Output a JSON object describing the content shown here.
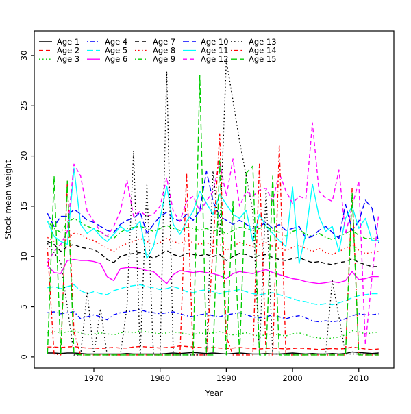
{
  "chart_data": {
    "type": "line",
    "title": "",
    "xlabel": "Year",
    "ylabel": "Stock mean weight",
    "grid": false,
    "legend_position": "top-left-inside",
    "legend_columns": 5,
    "xlim": [
      1961.0,
      2015.3
    ],
    "ylim": [
      -1.1,
      32.45
    ],
    "xticks": [
      1970,
      1980,
      1990,
      2000,
      2010
    ],
    "yticks": [
      0,
      5,
      10,
      15,
      20,
      25,
      30
    ],
    "x": [
      1963,
      1964,
      1965,
      1966,
      1967,
      1968,
      1969,
      1970,
      1971,
      1972,
      1973,
      1974,
      1975,
      1976,
      1977,
      1978,
      1979,
      1980,
      1981,
      1982,
      1983,
      1984,
      1985,
      1986,
      1987,
      1988,
      1989,
      1990,
      1991,
      1992,
      1993,
      1994,
      1995,
      1996,
      1997,
      1998,
      1999,
      2000,
      2001,
      2002,
      2003,
      2004,
      2005,
      2006,
      2007,
      2008,
      2009,
      2010,
      2011,
      2012,
      2013
    ],
    "series": [
      {
        "name": "Age 1",
        "color": "#000000",
        "linetype": "solid",
        "values": [
          0.4,
          0.4,
          0.35,
          0.4,
          0.4,
          0.35,
          0.3,
          0.3,
          0.3,
          0.3,
          0.3,
          0.3,
          0.35,
          0.3,
          0.3,
          0.3,
          0.3,
          0.3,
          0.35,
          0.4,
          0.35,
          0.4,
          0.45,
          0.4,
          0.35,
          0.4,
          0.35,
          0.3,
          0.35,
          0.4,
          0.35,
          0.3,
          0.3,
          0.35,
          0.3,
          0.3,
          0.35,
          0.4,
          0.35,
          0.3,
          0.35,
          0.3,
          0.3,
          0.35,
          0.3,
          0.35,
          0.5,
          0.45,
          0.4,
          0.35,
          0.4
        ]
      },
      {
        "name": "Age 2",
        "color": "#FF0000",
        "linetype": "dashed",
        "values": [
          1.0,
          1.0,
          0.95,
          1.0,
          1.05,
          0.95,
          0.9,
          0.9,
          0.85,
          0.9,
          0.95,
          0.9,
          0.9,
          1.0,
          1.05,
          1.0,
          0.95,
          0.9,
          0.95,
          1.0,
          1.1,
          1.05,
          1.0,
          0.95,
          0.9,
          0.95,
          0.9,
          0.85,
          0.9,
          0.95,
          0.9,
          0.85,
          0.8,
          0.85,
          0.9,
          0.85,
          0.8,
          0.85,
          0.9,
          0.85,
          0.8,
          0.75,
          0.8,
          0.85,
          0.8,
          0.85,
          1.0,
          0.9,
          0.8,
          0.75,
          0.8
        ]
      },
      {
        "name": "Age 3",
        "color": "#00CD00",
        "linetype": "dotted",
        "values": [
          2.4,
          2.5,
          2.4,
          2.5,
          2.6,
          2.4,
          2.2,
          2.3,
          2.4,
          2.3,
          2.2,
          2.4,
          2.5,
          2.4,
          2.6,
          2.5,
          2.4,
          2.3,
          2.4,
          2.5,
          2.4,
          2.3,
          2.2,
          2.4,
          2.3,
          2.4,
          2.5,
          2.3,
          2.2,
          2.3,
          2.4,
          2.2,
          2.1,
          2.2,
          2.3,
          2.2,
          2.1,
          2.3,
          2.4,
          2.2,
          2.0,
          1.9,
          1.8,
          1.9,
          2.0,
          2.2,
          2.6,
          2.5,
          2.3,
          2.4,
          2.5
        ]
      },
      {
        "name": "Age 4",
        "color": "#0000FF",
        "linetype": "dotdash",
        "values": [
          4.4,
          4.5,
          4.3,
          4.4,
          4.5,
          3.8,
          4.0,
          4.2,
          4.0,
          3.7,
          4.2,
          4.4,
          4.5,
          4.6,
          4.7,
          4.5,
          4.4,
          4.3,
          4.4,
          4.5,
          4.3,
          4.1,
          4.0,
          4.2,
          4.3,
          4.1,
          4.0,
          4.2,
          4.3,
          4.4,
          4.2,
          4.0,
          3.9,
          4.0,
          4.2,
          4.0,
          3.8,
          4.0,
          4.1,
          3.9,
          3.6,
          3.5,
          3.6,
          3.5,
          3.6,
          3.8,
          4.1,
          4.3,
          4.2,
          4.2,
          4.3
        ]
      },
      {
        "name": "Age 5",
        "color": "#00FFFF",
        "linetype": "longdash",
        "values": [
          6.9,
          7.0,
          6.8,
          7.0,
          7.2,
          6.6,
          6.3,
          6.5,
          6.3,
          6.2,
          6.6,
          6.8,
          7.0,
          7.1,
          7.2,
          7.0,
          6.9,
          6.7,
          6.8,
          7.0,
          6.8,
          6.5,
          6.4,
          6.6,
          6.7,
          6.5,
          6.3,
          6.5,
          6.6,
          6.7,
          6.5,
          6.3,
          6.2,
          6.3,
          6.4,
          6.2,
          6.0,
          5.8,
          5.6,
          5.5,
          5.3,
          5.2,
          5.3,
          5.2,
          5.4,
          5.6,
          5.9,
          6.1,
          6.2,
          6.3,
          6.3
        ]
      },
      {
        "name": "Age 6",
        "color": "#FF00FF",
        "linetype": "solid",
        "values": [
          9.1,
          8.4,
          8.3,
          9.6,
          9.7,
          9.6,
          9.6,
          9.5,
          9.3,
          8.0,
          7.6,
          8.8,
          8.9,
          8.9,
          8.8,
          8.6,
          8.5,
          7.9,
          7.3,
          8.2,
          8.6,
          8.5,
          8.4,
          8.5,
          8.4,
          8.3,
          8.1,
          7.8,
          8.3,
          8.5,
          8.4,
          8.3,
          8.5,
          8.7,
          8.4,
          8.2,
          8.0,
          7.8,
          7.7,
          7.5,
          7.4,
          7.3,
          7.4,
          7.5,
          7.4,
          7.6,
          8.5,
          7.7,
          7.8,
          8.0,
          8.0
        ]
      },
      {
        "name": "Age 7",
        "color": "#000000",
        "linetype": "dashed",
        "values": [
          11.5,
          11.2,
          10.5,
          11.0,
          11.2,
          10.9,
          10.8,
          10.7,
          10.3,
          9.7,
          9.4,
          10.0,
          10.2,
          10.3,
          10.4,
          10.2,
          9.8,
          10.2,
          10.6,
          10.2,
          10.0,
          10.3,
          10.2,
          10.1,
          10.2,
          10.0,
          10.2,
          9.6,
          10.0,
          10.3,
          10.2,
          9.9,
          10.1,
          10.2,
          9.9,
          9.7,
          9.6,
          9.8,
          9.9,
          9.6,
          9.4,
          9.5,
          9.3,
          9.2,
          9.4,
          9.5,
          9.8,
          9.4,
          9.2,
          9.0,
          9.0
        ]
      },
      {
        "name": "Age 8",
        "color": "#FF0000",
        "linetype": "dotted",
        "values": [
          11.9,
          11.5,
          11.0,
          11.8,
          12.3,
          12.2,
          11.8,
          11.6,
          11.2,
          10.8,
          10.5,
          11.0,
          11.3,
          11.5,
          11.8,
          11.5,
          11.2,
          11.4,
          11.8,
          11.5,
          11.3,
          11.6,
          11.4,
          11.2,
          11.4,
          11.0,
          11.2,
          10.6,
          11.0,
          11.4,
          11.2,
          11.0,
          11.2,
          11.4,
          11.0,
          10.8,
          10.6,
          10.9,
          11.1,
          10.8,
          10.5,
          10.8,
          10.4,
          10.2,
          10.5,
          10.8,
          11.2,
          10.6,
          10.3,
          10.4,
          10.5
        ]
      },
      {
        "name": "Age 9",
        "color": "#00CD00",
        "linetype": "dotdash",
        "values": [
          13.5,
          12.8,
          12.4,
          13.4,
          13.8,
          13.4,
          13.0,
          12.8,
          12.4,
          12.0,
          11.8,
          12.4,
          12.8,
          12.9,
          13.0,
          12.8,
          12.5,
          12.8,
          13.1,
          12.8,
          12.6,
          12.9,
          12.8,
          12.6,
          12.8,
          12.5,
          12.8,
          12.2,
          12.6,
          12.9,
          12.8,
          12.6,
          12.8,
          13.0,
          12.6,
          12.4,
          12.0,
          12.5,
          12.7,
          12.2,
          12.0,
          12.3,
          11.9,
          11.7,
          12.0,
          12.3,
          12.6,
          12.1,
          11.8,
          11.8,
          11.7
        ]
      },
      {
        "name": "Age 10",
        "color": "#0000FF",
        "linetype": "longdash",
        "values": [
          14.3,
          13.0,
          14.0,
          14.0,
          14.7,
          14.2,
          13.6,
          13.4,
          13.0,
          12.6,
          12.4,
          13.2,
          13.6,
          13.8,
          14.4,
          12.3,
          13.2,
          14.0,
          14.4,
          13.8,
          13.5,
          14.2,
          13.6,
          14.6,
          18.5,
          15.5,
          14.0,
          13.6,
          13.2,
          13.6,
          13.2,
          12.8,
          13.0,
          13.4,
          12.8,
          13.2,
          12.6,
          12.8,
          13.0,
          11.8,
          12.0,
          12.6,
          13.0,
          12.4,
          11.8,
          15.2,
          12.6,
          13.5,
          15.6,
          14.8,
          11.4
        ]
      },
      {
        "name": "Age 11",
        "color": "#00FFFF",
        "linetype": "solid",
        "values": [
          13.5,
          12.0,
          11.5,
          11.2,
          18.8,
          13.2,
          12.3,
          12.8,
          12.0,
          11.5,
          12.2,
          13.0,
          12.5,
          12.8,
          13.5,
          9.8,
          11.0,
          13.8,
          17.0,
          13.2,
          12.2,
          13.5,
          14.5,
          16.5,
          15.3,
          14.2,
          16.2,
          15.2,
          14.2,
          13.8,
          14.6,
          11.5,
          14.2,
          13.0,
          12.3,
          11.6,
          11.0,
          16.9,
          9.3,
          12.3,
          17.2,
          14.0,
          12.5,
          13.0,
          10.5,
          13.8,
          15.0,
          12.8,
          13.8,
          11.6,
          11.6
        ]
      },
      {
        "name": "Age 12",
        "color": "#FF00FF",
        "linetype": "dashed",
        "values": [
          9.4,
          10.5,
          11.2,
          12.5,
          19.2,
          18.0,
          14.5,
          13.5,
          12.5,
          12.0,
          13.0,
          14.5,
          17.6,
          14.0,
          14.5,
          14.0,
          14.2,
          15.0,
          17.8,
          14.5,
          13.5,
          15.5,
          16.0,
          14.5,
          15.5,
          16.5,
          19.4,
          16.0,
          19.7,
          15.0,
          16.5,
          16.0,
          16.6,
          16.8,
          15.5,
          18.3,
          16.5,
          15.3,
          16.0,
          15.7,
          23.3,
          16.5,
          15.8,
          15.5,
          18.6,
          12.2,
          15.0,
          17.5,
          1.2,
          8.0,
          14.2
        ]
      },
      {
        "name": "Age 13",
        "color": "#000000",
        "linetype": "dotted",
        "values": [
          11.3,
          10.4,
          9.4,
          5.0,
          0.2,
          0.2,
          6.5,
          0.2,
          4.8,
          0.2,
          0.2,
          0.2,
          5.0,
          20.5,
          0.2,
          17.1,
          0.2,
          0.2,
          28.4,
          0.2,
          0.2,
          0.2,
          0.2,
          0.2,
          0.2,
          18.5,
          12.0,
          29.5,
          25.5,
          21.5,
          18.0,
          14.5,
          0.3,
          16.6,
          0.3,
          0.3,
          0.3,
          0.3,
          0.3,
          0.3,
          0.3,
          0.3,
          0.3,
          7.6,
          4.0,
          0.3,
          0.3,
          0.3,
          0.3,
          0.3,
          0.3
        ]
      },
      {
        "name": "Age 14",
        "color": "#FF0000",
        "linetype": "dotdash",
        "values": [
          10.8,
          0.3,
          0.2,
          17.5,
          2.5,
          0.2,
          0.2,
          0.2,
          0.2,
          0.2,
          0.2,
          0.2,
          0.2,
          0.2,
          0.2,
          0.2,
          0.2,
          0.2,
          0.2,
          0.2,
          0.2,
          18.3,
          0.2,
          0.2,
          0.2,
          11.0,
          22.2,
          2.0,
          0.2,
          0.2,
          0.2,
          0.2,
          19.2,
          0.2,
          0.2,
          21.0,
          0.2,
          0.2,
          0.2,
          0.2,
          0.2,
          0.2,
          0.2,
          0.2,
          0.2,
          0.2,
          16.8,
          0.2,
          0.2,
          0.2,
          0.2
        ]
      },
      {
        "name": "Age 15",
        "color": "#00CD00",
        "linetype": "longdash",
        "values": [
          0.3,
          18.0,
          0.3,
          17.5,
          0.3,
          0.2,
          0.2,
          0.2,
          0.2,
          0.2,
          0.2,
          0.2,
          0.2,
          0.2,
          0.2,
          0.2,
          0.2,
          0.2,
          0.2,
          0.2,
          0.2,
          0.2,
          0.2,
          28.0,
          0.2,
          0.2,
          19.5,
          0.2,
          15.5,
          0.2,
          18.3,
          19.0,
          0.2,
          0.2,
          18.0,
          0.2,
          0.2,
          0.2,
          0.2,
          0.2,
          0.2,
          0.2,
          0.2,
          0.2,
          0.2,
          0.2,
          16.3,
          0.2,
          0.2,
          0.2,
          0.2
        ]
      }
    ]
  }
}
